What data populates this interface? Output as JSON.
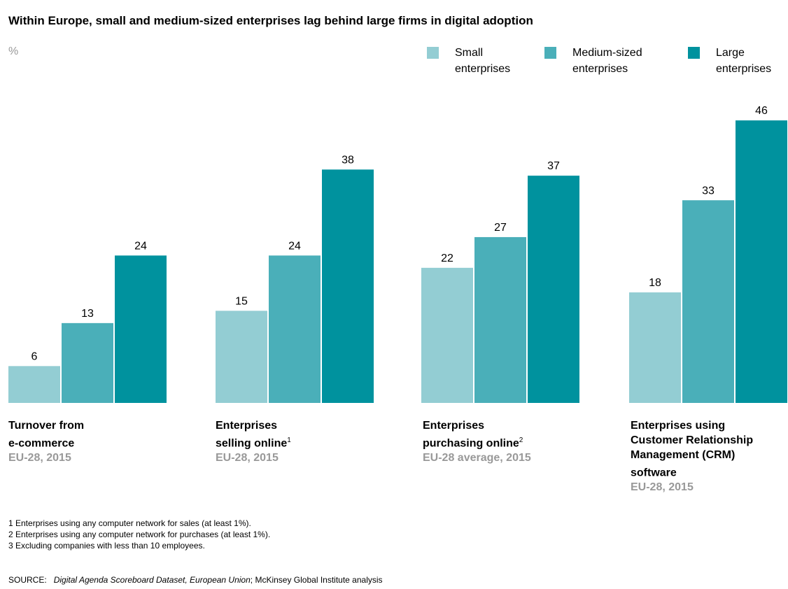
{
  "title": "Within Europe, small and medium-sized enterprises lag behind large firms in digital adoption",
  "unit_label": "%",
  "colors": {
    "small": "#93cdd3",
    "medium": "#4aafb9",
    "large": "#00929e"
  },
  "legend": [
    {
      "label_line1": "Small",
      "label_line2": "enterprises",
      "color": "#93cdd3"
    },
    {
      "label_line1": "Medium-sized",
      "label_line2": "enterprises",
      "color": "#4aafb9"
    },
    {
      "label_line1": "Large",
      "label_line2": "enterprises",
      "color": "#00929e"
    }
  ],
  "groups": [
    {
      "name": "Turnover from\ne-commerce",
      "sup": "",
      "sub": "EU-28, 2015"
    },
    {
      "name": "Enterprises\nselling online",
      "sup": "1",
      "sub": "EU-28, 2015"
    },
    {
      "name": "Enterprises\npurchasing online",
      "sup": "2",
      "sub": "EU-28 average, 2015"
    },
    {
      "name": "Enterprises using\nCustomer Relationship\nManagement (CRM)\nsoftware",
      "sup": "",
      "sub": "EU-28, 2015"
    }
  ],
  "chart_data": {
    "type": "bar",
    "categories": [
      "Turnover from e-commerce",
      "Enterprises selling online",
      "Enterprises purchasing online",
      "Enterprises using Customer Relationship Management (CRM) software"
    ],
    "series": [
      {
        "name": "Small enterprises",
        "values": [
          6,
          15,
          22,
          18
        ]
      },
      {
        "name": "Medium-sized enterprises",
        "values": [
          13,
          24,
          27,
          33
        ]
      },
      {
        "name": "Large enterprises",
        "values": [
          24,
          38,
          37,
          46
        ]
      }
    ],
    "title": "Within Europe, small and medium-sized enterprises lag behind large firms in digital adoption",
    "ylabel": "%",
    "ylim": [
      0,
      46
    ],
    "grid": false,
    "legend_position": "top-right"
  },
  "footnotes": [
    "1  Enterprises using any computer network for sales (at least 1%).",
    "2  Enterprises using any computer network for purchases (at least 1%).",
    "3  Excluding companies with less than 10 employees."
  ],
  "source": {
    "prefix": "SOURCE:",
    "italic": "Digital Agenda Scoreboard Dataset, European Union",
    "rest": "; McKinsey Global Institute analysis"
  }
}
